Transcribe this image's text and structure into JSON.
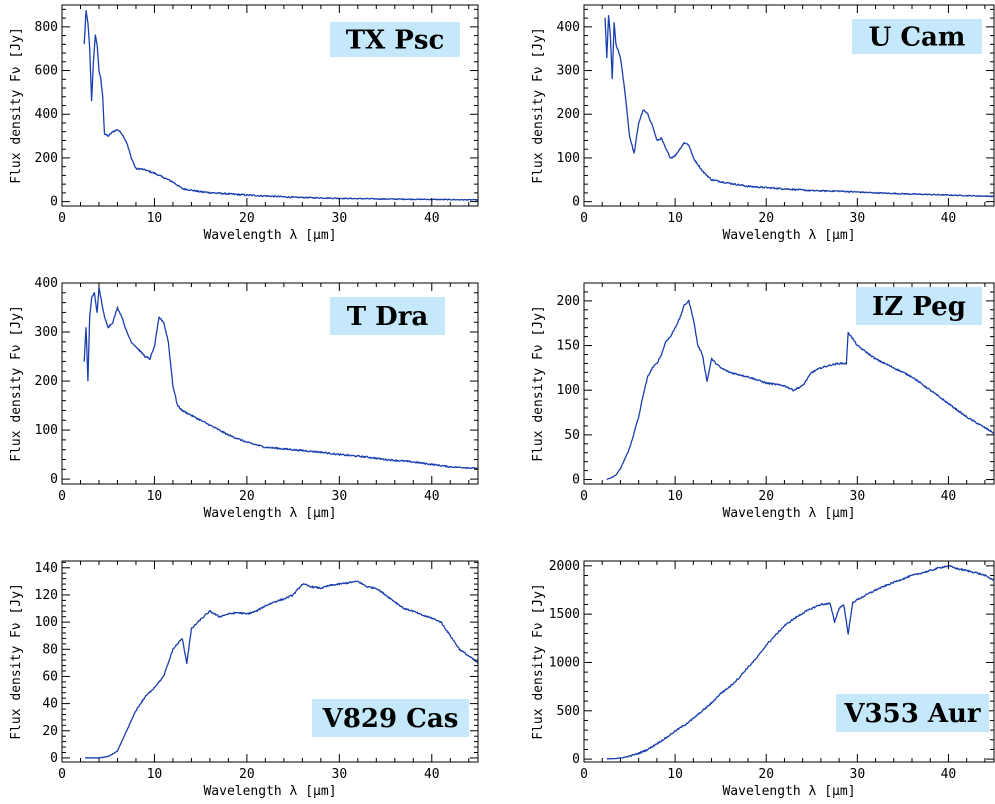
{
  "chart_data": [
    {
      "type": "line",
      "label": "TX Psc",
      "xlabel": "Wavelength λ [μm]",
      "ylabel": "Flux density Fν [Jy]",
      "xlim": [
        0,
        45
      ],
      "ylim": [
        -20,
        900
      ],
      "xticks": [
        0,
        10,
        20,
        30,
        40
      ],
      "yticks": [
        0,
        200,
        400,
        600,
        800
      ],
      "label_box_color": "#c6e8fb",
      "line_color": "#1a3fae",
      "x": [
        2.4,
        2.6,
        2.8,
        3.0,
        3.2,
        3.4,
        3.6,
        3.8,
        4.0,
        4.2,
        4.4,
        4.6,
        5.0,
        5.5,
        6.0,
        6.5,
        7.0,
        7.5,
        8.0,
        8.5,
        9.0,
        10,
        11,
        12,
        13,
        15,
        17,
        20,
        25,
        30,
        35,
        40,
        45
      ],
      "y": [
        720,
        870,
        820,
        700,
        460,
        640,
        760,
        720,
        600,
        560,
        480,
        310,
        300,
        320,
        330,
        310,
        270,
        200,
        150,
        150,
        145,
        130,
        110,
        90,
        60,
        45,
        38,
        30,
        20,
        15,
        12,
        10,
        8
      ]
    },
    {
      "type": "line",
      "label": "U Cam",
      "xlabel": "Wavelength λ [μm]",
      "ylabel": "Flux density Fν [Jy]",
      "xlim": [
        0,
        45
      ],
      "ylim": [
        -10,
        450
      ],
      "xticks": [
        0,
        10,
        20,
        30,
        40
      ],
      "yticks": [
        0,
        100,
        200,
        300,
        400
      ],
      "label_box_color": "#c6e8fb",
      "line_color": "#1a3fae",
      "x": [
        2.3,
        2.5,
        2.7,
        2.9,
        3.1,
        3.3,
        3.5,
        4.0,
        4.5,
        5.0,
        5.5,
        6.0,
        6.5,
        7.0,
        7.5,
        8.0,
        8.5,
        9.0,
        9.5,
        10.0,
        10.5,
        11.0,
        11.5,
        12.0,
        13,
        14,
        16,
        18,
        20,
        23,
        25,
        28,
        30,
        32,
        35,
        40,
        45
      ],
      "y": [
        420,
        330,
        425,
        380,
        280,
        410,
        360,
        330,
        250,
        150,
        110,
        180,
        210,
        200,
        175,
        140,
        145,
        120,
        100,
        105,
        120,
        135,
        130,
        100,
        70,
        50,
        42,
        35,
        32,
        28,
        25,
        24,
        22,
        20,
        18,
        15,
        12
      ]
    },
    {
      "type": "line",
      "label": "T Dra",
      "xlabel": "Wavelength λ [μm]",
      "ylabel": "Flux density Fν [Jy]",
      "xlim": [
        0,
        45
      ],
      "ylim": [
        -10,
        400
      ],
      "xticks": [
        0,
        10,
        20,
        30,
        40
      ],
      "yticks": [
        0,
        100,
        200,
        300,
        400
      ],
      "label_box_color": "#c6e8fb",
      "line_color": "#1a3fae",
      "x": [
        2.4,
        2.6,
        2.8,
        3.0,
        3.2,
        3.5,
        3.8,
        4.0,
        4.3,
        4.6,
        5.0,
        5.5,
        6.0,
        6.5,
        7.0,
        7.5,
        8,
        8.5,
        9,
        9.5,
        10,
        10.5,
        11,
        11.5,
        12,
        12.5,
        13,
        14,
        16,
        18,
        20,
        22,
        25,
        28,
        30,
        33,
        35,
        38,
        40,
        42,
        45
      ],
      "y": [
        240,
        310,
        200,
        330,
        370,
        380,
        340,
        390,
        360,
        330,
        310,
        320,
        350,
        330,
        300,
        280,
        270,
        260,
        250,
        245,
        270,
        330,
        320,
        280,
        190,
        150,
        140,
        130,
        110,
        90,
        75,
        65,
        60,
        55,
        50,
        45,
        40,
        35,
        30,
        25,
        22
      ]
    },
    {
      "type": "line",
      "label": "IZ Peg",
      "xlabel": "Wavelength λ [μm]",
      "ylabel": "Flux density Fν [Jy]",
      "xlim": [
        0,
        45
      ],
      "ylim": [
        -5,
        220
      ],
      "xticks": [
        0,
        10,
        20,
        30,
        40
      ],
      "yticks": [
        0,
        50,
        100,
        150,
        200
      ],
      "label_box_color": "#c6e8fb",
      "line_color": "#1a3fae",
      "x": [
        2.5,
        3,
        3.5,
        4,
        5,
        6,
        6.5,
        7,
        7.5,
        8,
        8.5,
        9,
        9.5,
        10,
        10.5,
        11,
        11.5,
        12,
        12.5,
        13,
        13.5,
        14,
        15,
        16,
        18,
        20,
        22,
        23,
        24,
        25,
        26,
        27,
        28,
        28.8,
        29,
        30,
        32,
        34,
        36,
        38,
        40,
        42,
        44,
        45
      ],
      "y": [
        0,
        2,
        5,
        12,
        35,
        70,
        95,
        115,
        125,
        130,
        140,
        155,
        160,
        170,
        180,
        195,
        200,
        180,
        150,
        140,
        110,
        135,
        125,
        120,
        115,
        108,
        105,
        100,
        105,
        120,
        125,
        128,
        130,
        130,
        165,
        150,
        135,
        125,
        115,
        100,
        85,
        70,
        58,
        52
      ]
    },
    {
      "type": "line",
      "label": "V829 Cas",
      "xlabel": "Wavelength λ [μm]",
      "ylabel": "Flux density Fν [Jy]",
      "xlim": [
        0,
        45
      ],
      "ylim": [
        -3,
        145
      ],
      "xticks": [
        0,
        10,
        20,
        30,
        40
      ],
      "yticks": [
        0,
        20,
        40,
        60,
        80,
        100,
        120,
        140
      ],
      "label_box_color": "#c6e8fb",
      "line_color": "#1a3fae",
      "x": [
        2.5,
        3,
        4,
        5,
        6,
        7,
        8,
        9,
        10,
        11,
        12,
        13,
        13.5,
        14,
        15,
        16,
        17,
        18,
        19,
        20,
        21,
        22,
        23,
        24,
        25,
        26,
        27,
        28,
        29,
        30,
        31,
        32,
        33,
        34,
        35,
        36,
        37,
        38,
        39,
        40,
        41,
        42,
        43,
        44,
        45
      ],
      "y": [
        0,
        0,
        0,
        1,
        5,
        20,
        35,
        45,
        52,
        60,
        80,
        88,
        70,
        95,
        102,
        108,
        104,
        106,
        107,
        106,
        108,
        112,
        115,
        117,
        120,
        128,
        126,
        125,
        127,
        128,
        129,
        130,
        126,
        125,
        120,
        115,
        110,
        108,
        105,
        103,
        100,
        90,
        80,
        75,
        70
      ]
    },
    {
      "type": "line",
      "label": "V353 Aur",
      "xlabel": "Wavelength λ [μm]",
      "ylabel": "Flux density Fν [Jy]",
      "xlim": [
        0,
        45
      ],
      "ylim": [
        -30,
        2050
      ],
      "xticks": [
        0,
        10,
        20,
        30,
        40
      ],
      "yticks": [
        0,
        500,
        1000,
        1500,
        2000
      ],
      "label_box_color": "#c6e8fb",
      "line_color": "#1a3fae",
      "x": [
        2.5,
        3,
        4,
        5,
        6,
        7,
        8,
        9,
        10,
        11,
        12,
        13,
        14,
        15,
        16,
        17,
        18,
        19,
        20,
        21,
        22,
        23,
        24,
        25,
        26,
        27,
        27.5,
        28,
        28.5,
        29,
        29.5,
        30,
        32,
        34,
        36,
        38,
        39,
        40,
        41,
        42,
        43,
        44,
        45
      ],
      "y": [
        0,
        5,
        10,
        30,
        60,
        100,
        160,
        220,
        290,
        350,
        420,
        500,
        580,
        680,
        750,
        840,
        950,
        1050,
        1180,
        1280,
        1380,
        1450,
        1510,
        1560,
        1600,
        1610,
        1420,
        1560,
        1600,
        1300,
        1620,
        1650,
        1750,
        1830,
        1900,
        1950,
        1980,
        2000,
        1970,
        1950,
        1930,
        1900,
        1850
      ]
    }
  ]
}
